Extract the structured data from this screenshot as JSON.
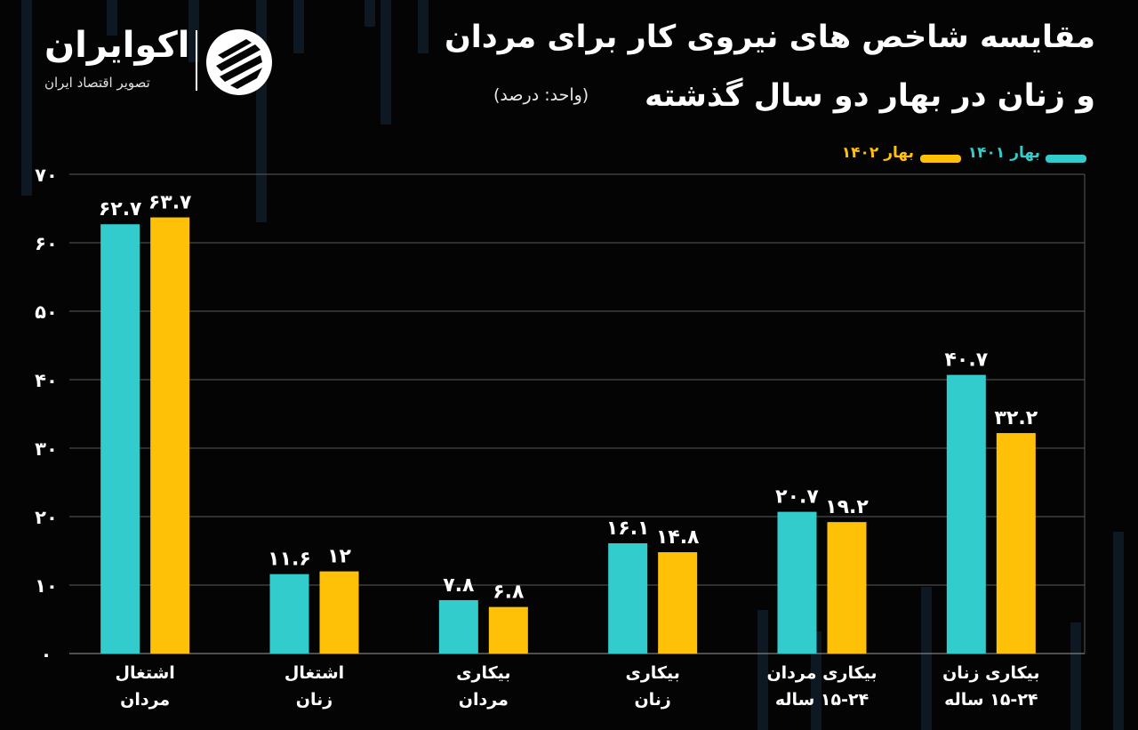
{
  "brand": {
    "name": "اکوایران",
    "tagline": "تصویر اقتصاد ایران"
  },
  "header": {
    "title_line_1": "مقایسه شاخص های نیروی کار برای مردان",
    "title_line_2": "و زنان در بهار دو سال گذشته",
    "unit": "(واحد: درصد)"
  },
  "colors": {
    "background": "#040404",
    "series_1401": "#33cccc",
    "series_1402": "#ffc107",
    "grid": "#5a5a5a"
  },
  "chart_data": {
    "type": "bar",
    "categories": [
      "اشتغال مردان",
      "اشتغال زنان",
      "بیکاری مردان",
      "بیکاری زنان",
      "بیکاری مردان ۱۵-۲۴ ساله",
      "بیکاری زنان ۱۵-۲۴ ساله"
    ],
    "category_lines": [
      [
        "اشتغال",
        "مردان"
      ],
      [
        "اشتغال",
        "زنان"
      ],
      [
        "بیکاری",
        "مردان"
      ],
      [
        "بیکاری",
        "زنان"
      ],
      [
        "بیکاری مردان",
        "۱۵-۲۴ ساله"
      ],
      [
        "بیکاری زنان",
        "۱۵-۲۴ ساله"
      ]
    ],
    "series": [
      {
        "name": "بهار ۱۴۰۱",
        "color": "#33cccc",
        "values": [
          62.7,
          11.6,
          7.8,
          16.1,
          20.7,
          40.7
        ],
        "labels": [
          "۶۲.۷",
          "۱۱.۶",
          "۷.۸",
          "۱۶.۱",
          "۲۰.۷",
          "۴۰.۷"
        ]
      },
      {
        "name": "بهار ۱۴۰۲",
        "color": "#ffc107",
        "values": [
          63.7,
          12,
          6.8,
          14.8,
          19.2,
          32.2
        ],
        "labels": [
          "۶۳.۷",
          "۱۲",
          "۶.۸",
          "۱۴.۸",
          "۱۹.۲",
          "۳۲.۲"
        ]
      }
    ],
    "ylim": [
      0,
      70
    ],
    "yticks": [
      0,
      10,
      20,
      30,
      40,
      50,
      60,
      70
    ],
    "ytick_labels": [
      "۰",
      "۱۰",
      "۲۰",
      "۳۰",
      "۴۰",
      "۵۰",
      "۶۰",
      "۷۰"
    ],
    "grid": true,
    "legend_position": "top-right",
    "title": "مقایسه شاخص های نیروی کار برای مردان و زنان در بهار دو سال گذشته"
  }
}
